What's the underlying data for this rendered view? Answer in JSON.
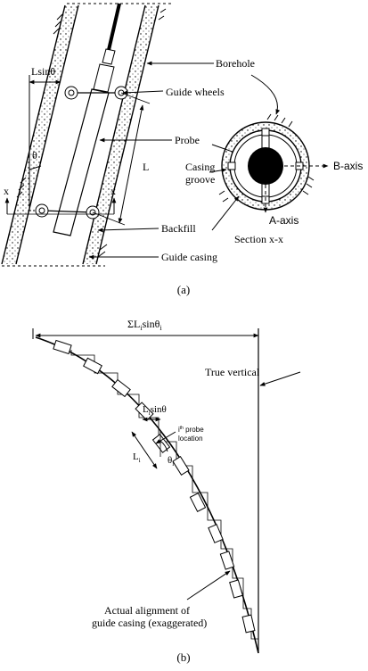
{
  "figure_a": {
    "labels": {
      "l_sin_theta": "Lsinθ",
      "borehole": "Borehole",
      "guide_wheels": "Guide wheels",
      "theta": "θ",
      "probe": "Probe",
      "length": "L",
      "casing_groove_line1": "Casing",
      "casing_groove_line2": "groove",
      "b_axis": "B-axis",
      "a_axis": "A-axis",
      "x_left": "x",
      "x_right": "x",
      "backfill": "Backfill",
      "section": "Section x-x",
      "guide_casing": "Guide casing"
    },
    "caption": "(a)"
  },
  "figure_b": {
    "labels": {
      "sum_main": "ΣL",
      "sum_i1": "i",
      "sum_mid": "sinθ",
      "sum_i2": "i",
      "true_vertical": "True vertical",
      "li_sin_main": "L",
      "li_sin_i": "i",
      "li_sin_rest": "sinθ",
      "probe_loc_i": "i",
      "probe_loc_th": "th",
      "probe_loc_rest": " probe",
      "probe_loc_line2": "location",
      "theta_i_main": "θ",
      "theta_i_sub": "i",
      "li_main": "L",
      "li_sub": "i",
      "alignment_line1": "Actual alignment of",
      "alignment_line2": "guide casing (exaggerated)"
    },
    "caption": "(b)"
  }
}
